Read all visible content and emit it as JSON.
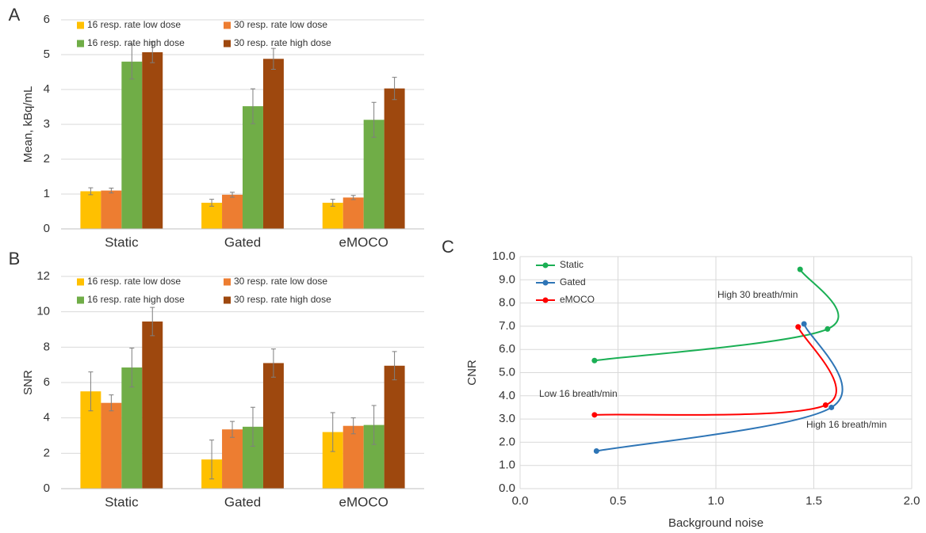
{
  "chart_data": [
    {
      "type": "bar",
      "panel_label": "A",
      "y_label": "Mean, kBq/mL",
      "categories": [
        "Static",
        "Gated",
        "eMOCO"
      ],
      "series": [
        {
          "name": "16 resp. rate low dose",
          "color": "#FFC000",
          "values": [
            1.08,
            0.75,
            0.75
          ],
          "errors": [
            0.1,
            0.1,
            0.1
          ]
        },
        {
          "name": "30 resp. rate low dose",
          "color": "#ED7D31",
          "values": [
            1.1,
            0.98,
            0.9
          ],
          "errors": [
            0.07,
            0.07,
            0.06
          ]
        },
        {
          "name": "16 resp. rate high dose",
          "color": "#70AD47",
          "values": [
            4.8,
            3.52,
            3.13
          ],
          "errors": [
            0.5,
            0.5,
            0.5
          ]
        },
        {
          "name": "30 resp. rate high dose",
          "color": "#9E480E",
          "values": [
            5.07,
            4.88,
            4.03
          ],
          "errors": [
            0.3,
            0.3,
            0.32
          ]
        }
      ],
      "ylim": [
        0,
        6
      ],
      "yticks": [
        0,
        1,
        2,
        3,
        4,
        5,
        6
      ],
      "grid": true,
      "legend": "top"
    },
    {
      "type": "bar",
      "panel_label": "B",
      "y_label": "SNR",
      "categories": [
        "Static",
        "Gated",
        "eMOCO"
      ],
      "series": [
        {
          "name": "16 resp. rate low dose",
          "color": "#FFC000",
          "values": [
            5.5,
            1.65,
            3.2
          ],
          "errors": [
            1.1,
            1.1,
            1.1
          ]
        },
        {
          "name": "30 resp. rate low dose",
          "color": "#ED7D31",
          "values": [
            4.85,
            3.35,
            3.55
          ],
          "errors": [
            0.45,
            0.45,
            0.45
          ]
        },
        {
          "name": "16 resp. rate high dose",
          "color": "#70AD47",
          "values": [
            6.85,
            3.5,
            3.6
          ],
          "errors": [
            1.1,
            1.1,
            1.1
          ]
        },
        {
          "name": "30 resp. rate high dose",
          "color": "#9E480E",
          "values": [
            9.45,
            7.1,
            6.95
          ],
          "errors": [
            0.8,
            0.8,
            0.8
          ]
        }
      ],
      "ylim": [
        0,
        12
      ],
      "yticks": [
        0,
        2,
        4,
        6,
        8,
        10,
        12
      ],
      "grid": true,
      "legend": "top"
    },
    {
      "type": "line",
      "panel_label": "C",
      "x_label": "Background noise",
      "y_label": "CNR",
      "series": [
        {
          "name": "Static",
          "color": "#1AAF54",
          "x": [
            0.38,
            1.57,
            1.43
          ],
          "values": [
            5.52,
            6.88,
            9.45
          ]
        },
        {
          "name": "Gated",
          "color": "#2E75B6",
          "x": [
            0.39,
            1.59,
            1.45
          ],
          "values": [
            1.62,
            3.5,
            7.1
          ]
        },
        {
          "name": "eMOCO",
          "color": "#FF0000",
          "x": [
            0.38,
            1.56,
            1.42
          ],
          "values": [
            3.18,
            3.6,
            6.97
          ]
        }
      ],
      "annotations": [
        "High 30 breath/min",
        "Low 16 breath/min",
        "High 16 breath/min"
      ],
      "xlim": [
        0,
        2
      ],
      "xticks": [
        {
          "value": 0,
          "label": "0.0"
        },
        {
          "value": 0.5,
          "label": "0.5"
        },
        {
          "value": 1,
          "label": "1.0"
        },
        {
          "value": 1.5,
          "label": "1.5"
        },
        {
          "value": 2,
          "label": "2.0"
        }
      ],
      "ylim": [
        0,
        10
      ],
      "yticks": [
        {
          "value": 0,
          "label": "0.0"
        },
        {
          "value": 1,
          "label": "1.0"
        },
        {
          "value": 2,
          "label": "2.0"
        },
        {
          "value": 3,
          "label": "3.0"
        },
        {
          "value": 4,
          "label": "4.0"
        },
        {
          "value": 5,
          "label": "5.0"
        },
        {
          "value": 6,
          "label": "6.0"
        },
        {
          "value": 7,
          "label": "7.0"
        },
        {
          "value": 8,
          "label": "8.0"
        },
        {
          "value": 9,
          "label": "9.0"
        },
        {
          "value": 10,
          "label": "10.0"
        }
      ],
      "grid": true,
      "legend": "upper left"
    }
  ]
}
